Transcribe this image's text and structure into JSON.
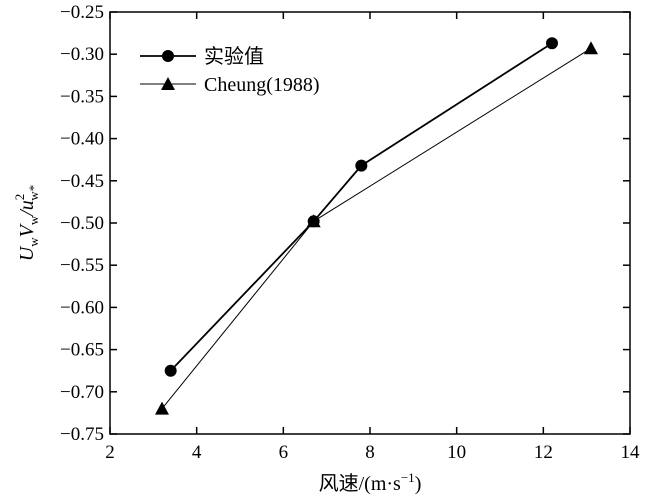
{
  "chart_data": {
    "type": "line",
    "xlabel": "风速/(m·s",
    "xlabel_sup": "−1",
    "xlabel_close": ")",
    "ylabel": {
      "u1": "U",
      "u1_sub": "w",
      "v1": "V",
      "v1_sub": "w",
      "slash": "/u",
      "sup": "2",
      "sub": "w*"
    },
    "xlim": [
      2,
      14
    ],
    "ylim": [
      -0.75,
      -0.25
    ],
    "xticks": [
      "2",
      "4",
      "6",
      "8",
      "10",
      "12",
      "14"
    ],
    "yticks": [
      "−0.25",
      "−0.30",
      "−0.35",
      "−0.40",
      "−0.45",
      "−0.50",
      "−0.55",
      "−0.60",
      "−0.65",
      "−0.70",
      "−0.75"
    ],
    "grid": false,
    "legend_position": "top-left",
    "series": [
      {
        "name": "实验值",
        "marker": "circle",
        "points": [
          {
            "x": 3.4,
            "y": -0.675
          },
          {
            "x": 6.7,
            "y": -0.498
          },
          {
            "x": 7.8,
            "y": -0.432
          },
          {
            "x": 12.2,
            "y": -0.287
          }
        ]
      },
      {
        "name": "Cheung(1988)",
        "marker": "triangle",
        "points": [
          {
            "x": 3.2,
            "y": -0.72
          },
          {
            "x": 6.7,
            "y": -0.498
          },
          {
            "x": 13.1,
            "y": -0.293
          }
        ]
      }
    ]
  }
}
